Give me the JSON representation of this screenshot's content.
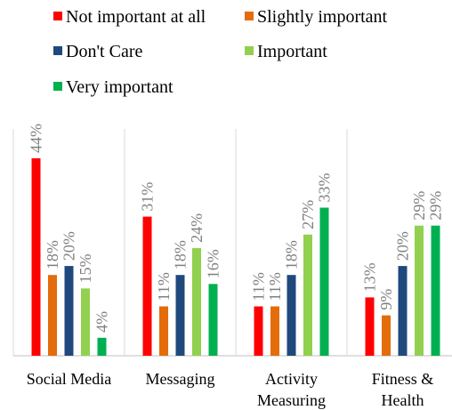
{
  "chart_data": {
    "type": "bar",
    "categories": [
      "Social Media",
      "Messaging",
      "Activity Measuring",
      "Fitness & Health"
    ],
    "series": [
      {
        "name": "Not important at all",
        "color": "#ff0000",
        "values": [
          44,
          31,
          11,
          13
        ],
        "value_labels": [
          "44%",
          "31%",
          "11%",
          "13%"
        ]
      },
      {
        "name": "Slightly important",
        "color": "#e46c0a",
        "values": [
          18,
          11,
          11,
          9
        ],
        "value_labels": [
          "18%",
          "11%",
          "11%",
          "9%"
        ]
      },
      {
        "name": "Don't Care",
        "color": "#1f497d",
        "values": [
          20,
          18,
          18,
          20
        ],
        "value_labels": [
          "20%",
          "18%",
          "18%",
          "20%"
        ]
      },
      {
        "name": "Important",
        "color": "#92d050",
        "values": [
          15,
          24,
          27,
          29
        ],
        "value_labels": [
          "15%",
          "24%",
          "27%",
          "29%"
        ]
      },
      {
        "name": "Very important",
        "color": "#00b050",
        "values": [
          4,
          16,
          33,
          29
        ],
        "value_labels": [
          "4%",
          "16%",
          "33%",
          "29%"
        ]
      }
    ]
  }
}
